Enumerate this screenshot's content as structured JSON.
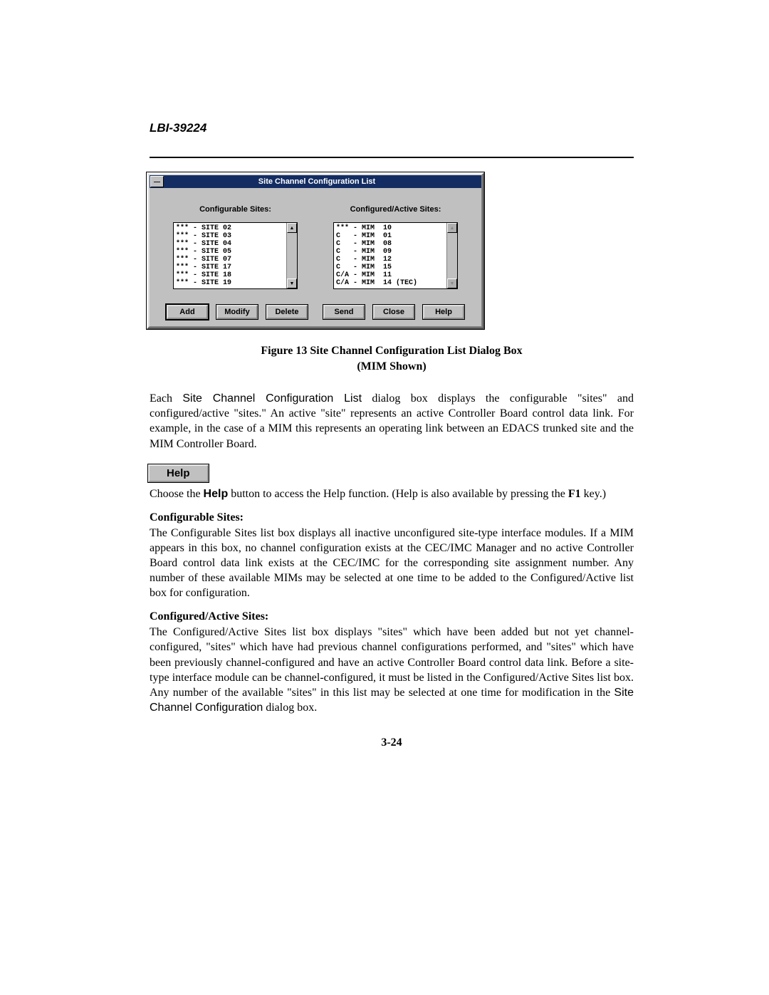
{
  "header": {
    "doc_code": "LBI-39224"
  },
  "dialog": {
    "title": "Site Channel Configuration List",
    "configurable": {
      "label": "Configurable Sites:",
      "items": [
        "*** - SITE 02",
        "*** - SITE 03",
        "*** - SITE 04",
        "*** - SITE 05",
        "*** - SITE 07",
        "*** - SITE 17",
        "*** - SITE 18",
        "*** - SITE 19"
      ],
      "scrollbar_enabled": true
    },
    "active": {
      "label": "Configured/Active Sites:",
      "items": [
        "*** - MIM  10",
        "C   - MIM  01",
        "C   - MIM  08",
        "C   - MIM  09",
        "C   - MIM  12",
        "C   - MIM  15",
        "C/A - MIM  11",
        "C/A - MIM  14 (TEC)"
      ],
      "scrollbar_enabled": false
    },
    "buttons": {
      "add": "Add",
      "modify": "Modify",
      "delete": "Delete",
      "send": "Send",
      "close": "Close",
      "help": "Help"
    }
  },
  "figure_caption": {
    "line1": "Figure 13  Site Channel Configuration List Dialog Box",
    "line2": "(MIM Shown)"
  },
  "para1": {
    "pre": "Each ",
    "sans": "Site Channel Configuration List",
    "post": " dialog box displays the configurable \"sites\" and configured/active \"sites.\"  An active \"site\" represents an active Controller Board control data link.  For example, in the case of a MIM this represents an operating link between an EDACS trunked site and the MIM Controller Board."
  },
  "help_button_label": "Help",
  "para2": {
    "pre": "Choose the ",
    "bold": "Help",
    "mid": " button to access the Help function. (Help is also available by pressing the ",
    "bold2": "F1",
    "post": " key.)"
  },
  "section_conf": {
    "heading": "Configurable Sites:",
    "text": "The Configurable Sites list box displays all inactive unconfigured site-type interface modules.  If a MIM appears in this box, no channel configuration exists at the CEC/IMC Manager and no active Controller Board control data link exists at the CEC/IMC for the corresponding site assignment number.  Any number of these available MIMs may be selected at one time to be added to the Configured/Active list box for configuration."
  },
  "section_act": {
    "heading": "Configured/Active Sites:",
    "pre": "The Configured/Active Sites list box displays \"sites\" which have been added but not yet channel-configured, \"sites\" which have had previous channel configurations performed, and \"sites\" which have been previously channel-configured and have an active Controller Board control data link.  Before a site-type interface module can be channel-configured, it must be listed in the Configured/Active Sites list box. Any number of the available \"sites\" in this list may be selected at one time for modification in the ",
    "sans": "Site Channel Configuration",
    "post": " dialog box."
  },
  "page_number": "3-24"
}
